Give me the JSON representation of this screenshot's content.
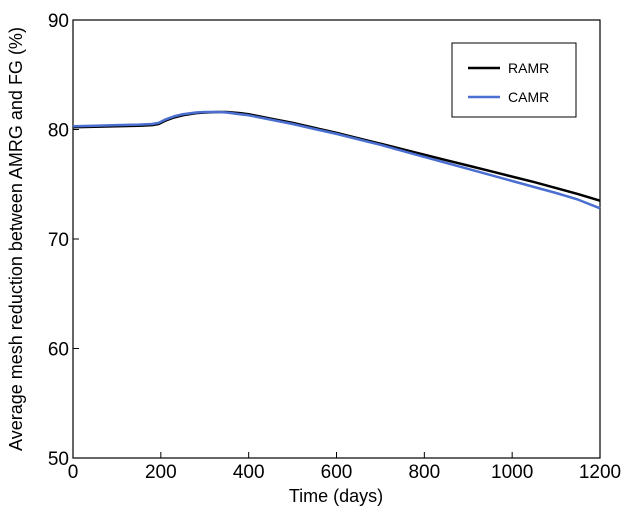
{
  "chart_data": {
    "type": "line",
    "xlabel": "Time (days)",
    "ylabel": "Average mesh reduction between AMRG and FG (%)",
    "xlim": [
      0,
      1200
    ],
    "ylim": [
      50,
      90
    ],
    "xticks": [
      0,
      200,
      400,
      600,
      800,
      1000,
      1200
    ],
    "xtick_labels": [
      "0",
      "200",
      "400",
      "600",
      "800",
      "1000",
      "1200"
    ],
    "yticks": [
      50,
      60,
      70,
      80,
      90
    ],
    "ytick_labels": [
      "50",
      "60",
      "70",
      "80",
      "90"
    ],
    "grid": false,
    "legend_position": "top-right",
    "series": [
      {
        "name": "RAMR",
        "color": "#000000",
        "x": [
          0,
          50,
          100,
          150,
          180,
          195,
          210,
          230,
          250,
          280,
          300,
          330,
          350,
          380,
          400,
          450,
          500,
          550,
          600,
          650,
          700,
          750,
          800,
          850,
          900,
          950,
          1000,
          1050,
          1100,
          1150,
          1200
        ],
        "y": [
          80.2,
          80.25,
          80.3,
          80.35,
          80.4,
          80.5,
          80.8,
          81.1,
          81.3,
          81.5,
          81.55,
          81.6,
          81.6,
          81.5,
          81.4,
          81.0,
          80.6,
          80.15,
          79.7,
          79.2,
          78.7,
          78.2,
          77.7,
          77.2,
          76.7,
          76.2,
          75.7,
          75.2,
          74.65,
          74.1,
          73.5
        ]
      },
      {
        "name": "CAMR",
        "color": "#4a6fd0",
        "x": [
          0,
          50,
          100,
          150,
          180,
          195,
          210,
          230,
          250,
          280,
          300,
          330,
          350,
          380,
          400,
          450,
          500,
          550,
          600,
          650,
          700,
          750,
          800,
          850,
          900,
          950,
          1000,
          1050,
          1100,
          1150,
          1200
        ],
        "y": [
          80.3,
          80.35,
          80.4,
          80.45,
          80.5,
          80.6,
          80.9,
          81.2,
          81.4,
          81.55,
          81.6,
          81.6,
          81.55,
          81.4,
          81.3,
          80.9,
          80.5,
          80.05,
          79.6,
          79.1,
          78.6,
          78.05,
          77.5,
          76.95,
          76.4,
          75.85,
          75.3,
          74.75,
          74.2,
          73.6,
          72.8
        ]
      }
    ]
  }
}
